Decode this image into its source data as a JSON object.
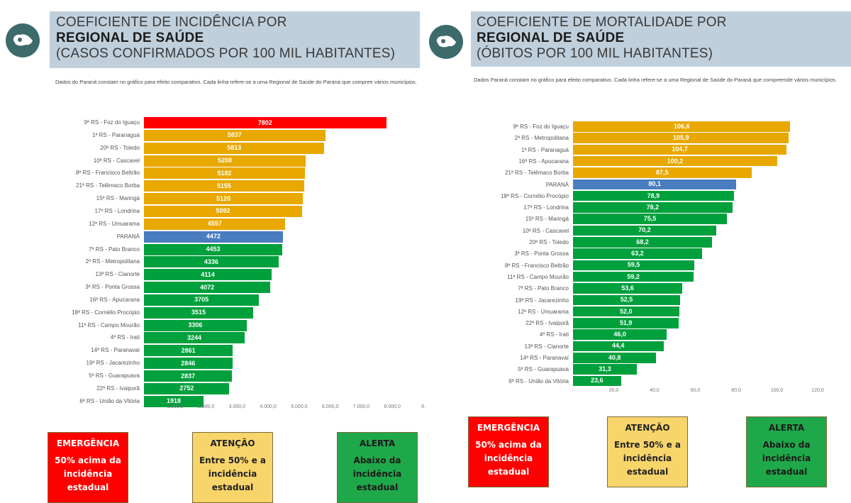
{
  "colors": {
    "emergencia": "#ff0000",
    "atencao": "#e8a800",
    "alerta": "#00a03c",
    "parana": "#4a7cc0",
    "header_bg": "#bfcfdb",
    "logo": "#3d6b6c",
    "legend_atencao_bg": "#f8d56a",
    "legend_alerta_bg": "#1fa84a"
  },
  "icons": {
    "logo": "parana-map-icon"
  },
  "left": {
    "header": {
      "line1": "COEFICIENTE DE INCIDÊNCIA POR",
      "line2": "REGIONAL DE SAÚDE",
      "line3": "(CASOS CONFIRMADOS POR 100 MIL HABITANTES)"
    },
    "note": "Dados do Paraná constam no gráfico para efeito comparativo. Cada linha refere-se a uma Regional de Saúde do Paraná que compree vários municípios.",
    "legend": [
      {
        "title": "EMERGÊNCIA",
        "lines": [
          "50% acima da",
          "incidência",
          "estadual"
        ]
      },
      {
        "title": "ATENÇÃO",
        "lines": [
          "Entre 50% e a",
          "incidência",
          "estadual"
        ]
      },
      {
        "title": "ALERTA",
        "lines": [
          "Abaixo da",
          "incidência",
          "estadual"
        ]
      }
    ]
  },
  "right": {
    "header": {
      "line1": "COEFICIENTE DE MORTALIDADE POR",
      "line2": "REGIONAL DE SAÚDE",
      "line3": "(ÓBITOS POR 100 MIL HABITANTES)"
    },
    "note": "Dados Paraná constam no gráfico para efeito comparativo. Cada linha refere-se a uma Regional de Saúde do Paraná que compreende vários municípios.",
    "legend": [
      {
        "title": "EMERGÊNCIA",
        "lines": [
          "50% acima da",
          "incidência",
          "estadual"
        ]
      },
      {
        "title": "ATENÇÃO",
        "lines": [
          "Entre 50% e a",
          "incidência",
          "estadual"
        ]
      },
      {
        "title": "ALERTA",
        "lines": [
          "Abaixo da",
          "incidência",
          "estadual"
        ]
      }
    ]
  },
  "chart_data": [
    {
      "type": "bar",
      "orientation": "horizontal",
      "title": "Coeficiente de incidência por Regional de Saúde (casos confirmados por 100 mil habitantes)",
      "xlabel": "",
      "ylabel": "",
      "xlim": [
        0,
        9000
      ],
      "ticks": [
        "-",
        "1.000,0",
        "2.000,0",
        "3.000,0",
        "4.000,0",
        "5.000,0",
        "6.000,0",
        "7.000,0",
        "8.000,0",
        "9."
      ],
      "tick_values": [
        0,
        1000,
        2000,
        3000,
        4000,
        5000,
        6000,
        7000,
        8000,
        9000
      ],
      "grid": false,
      "categories": [
        "9ª RS - Foz do Iguaçu",
        "1ª RS - Paranaguá",
        "20ª RS - Toledo",
        "10ª RS - Cascavel",
        "8ª RS - Francisco Beltrão",
        "21ª RS - Telêmaco Borba",
        "15ª RS - Maringá",
        "17ª RS - Londrina",
        "12ª RS - Umuarama",
        "PARANÁ",
        "7ª RS - Pato Branco",
        "2ª RS - Metropolitana",
        "13ª RS - Cianorte",
        "3ª RS - Ponta Grossa",
        "16ª RS - Apucarana",
        "18ª RS - Cornélio Procópio",
        "11ª RS - Campo Mourão",
        "4ª RS - Irati",
        "14ª RS - Paranavaí",
        "19ª RS - Jacarezinho",
        "5ª RS - Guarapuava",
        "22ª RS - Ivaiporã",
        "6ª RS - União da Vitória"
      ],
      "values": [
        7802,
        5837,
        5813,
        5208,
        5182,
        5155,
        5120,
        5092,
        4557,
        4472,
        4453,
        4336,
        4114,
        4072,
        3705,
        3515,
        3306,
        3244,
        2861,
        2846,
        2837,
        2752,
        1918
      ],
      "value_labels": [
        "7802",
        "5837",
        "5813",
        "5208",
        "5182",
        "5155",
        "5120",
        "5092",
        "4557",
        "4472",
        "4453",
        "4336",
        "4114",
        "4072",
        "3705",
        "3515",
        "3306",
        "3244",
        "2861",
        "2846",
        "2837",
        "2752",
        "1918"
      ],
      "status": [
        "emergencia",
        "atencao",
        "atencao",
        "atencao",
        "atencao",
        "atencao",
        "atencao",
        "atencao",
        "atencao",
        "parana",
        "alerta",
        "alerta",
        "alerta",
        "alerta",
        "alerta",
        "alerta",
        "alerta",
        "alerta",
        "alerta",
        "alerta",
        "alerta",
        "alerta",
        "alerta"
      ]
    },
    {
      "type": "bar",
      "orientation": "horizontal",
      "title": "Coeficiente de mortalidade por Regional de Saúde (óbitos por 100 mil habitantes)",
      "xlabel": "",
      "ylabel": "",
      "xlim": [
        0,
        120
      ],
      "ticks": [
        "-",
        "20,0",
        "40,0",
        "60,0",
        "80,0",
        "100,0",
        "120,0"
      ],
      "tick_values": [
        0,
        20,
        40,
        60,
        80,
        100,
        120
      ],
      "grid": false,
      "categories": [
        "9ª RS - Foz do Iguaçu",
        "2ª RS - Metropolitana",
        "1ª RS - Paranaguá",
        "16ª RS - Apucarana",
        "21ª RS - Telêmaco Borba",
        "PARANÁ",
        "18ª RS - Cornélio Procópio",
        "17ª RS - Londrina",
        "15ª RS - Maringá",
        "10ª RS - Cascavel",
        "20ª RS - Toledo",
        "3ª RS - Ponta Grossa",
        "8ª RS - Francisco Beltrão",
        "11ª RS - Campo Mourão",
        "7ª RS - Pato Branco",
        "19ª RS - Jacarezinho",
        "12ª RS - Umuarama",
        "22ª RS - Ivaiporã",
        "4ª RS - Irati",
        "13ª RS - Cianorte",
        "14ª RS - Paranavaí",
        "5ª RS - Guarapuava",
        "6ª RS - União da Vitória"
      ],
      "values": [
        106.6,
        105.9,
        104.7,
        100.2,
        87.5,
        80.1,
        78.9,
        78.2,
        75.5,
        70.2,
        68.2,
        63.2,
        59.5,
        59.2,
        53.6,
        52.5,
        52.0,
        51.9,
        46.0,
        44.4,
        40.8,
        31.3,
        23.6
      ],
      "value_labels": [
        "106,6",
        "105,9",
        "104,7",
        "100,2",
        "87,5",
        "80,1",
        "78,9",
        "78,2",
        "75,5",
        "70,2",
        "68,2",
        "63,2",
        "59,5",
        "59,2",
        "53,6",
        "52,5",
        "52,0",
        "51,9",
        "46,0",
        "44,4",
        "40,8",
        "31,3",
        "23,6"
      ],
      "status": [
        "atencao",
        "atencao",
        "atencao",
        "atencao",
        "atencao",
        "parana",
        "alerta",
        "alerta",
        "alerta",
        "alerta",
        "alerta",
        "alerta",
        "alerta",
        "alerta",
        "alerta",
        "alerta",
        "alerta",
        "alerta",
        "alerta",
        "alerta",
        "alerta",
        "alerta",
        "alerta"
      ]
    }
  ]
}
